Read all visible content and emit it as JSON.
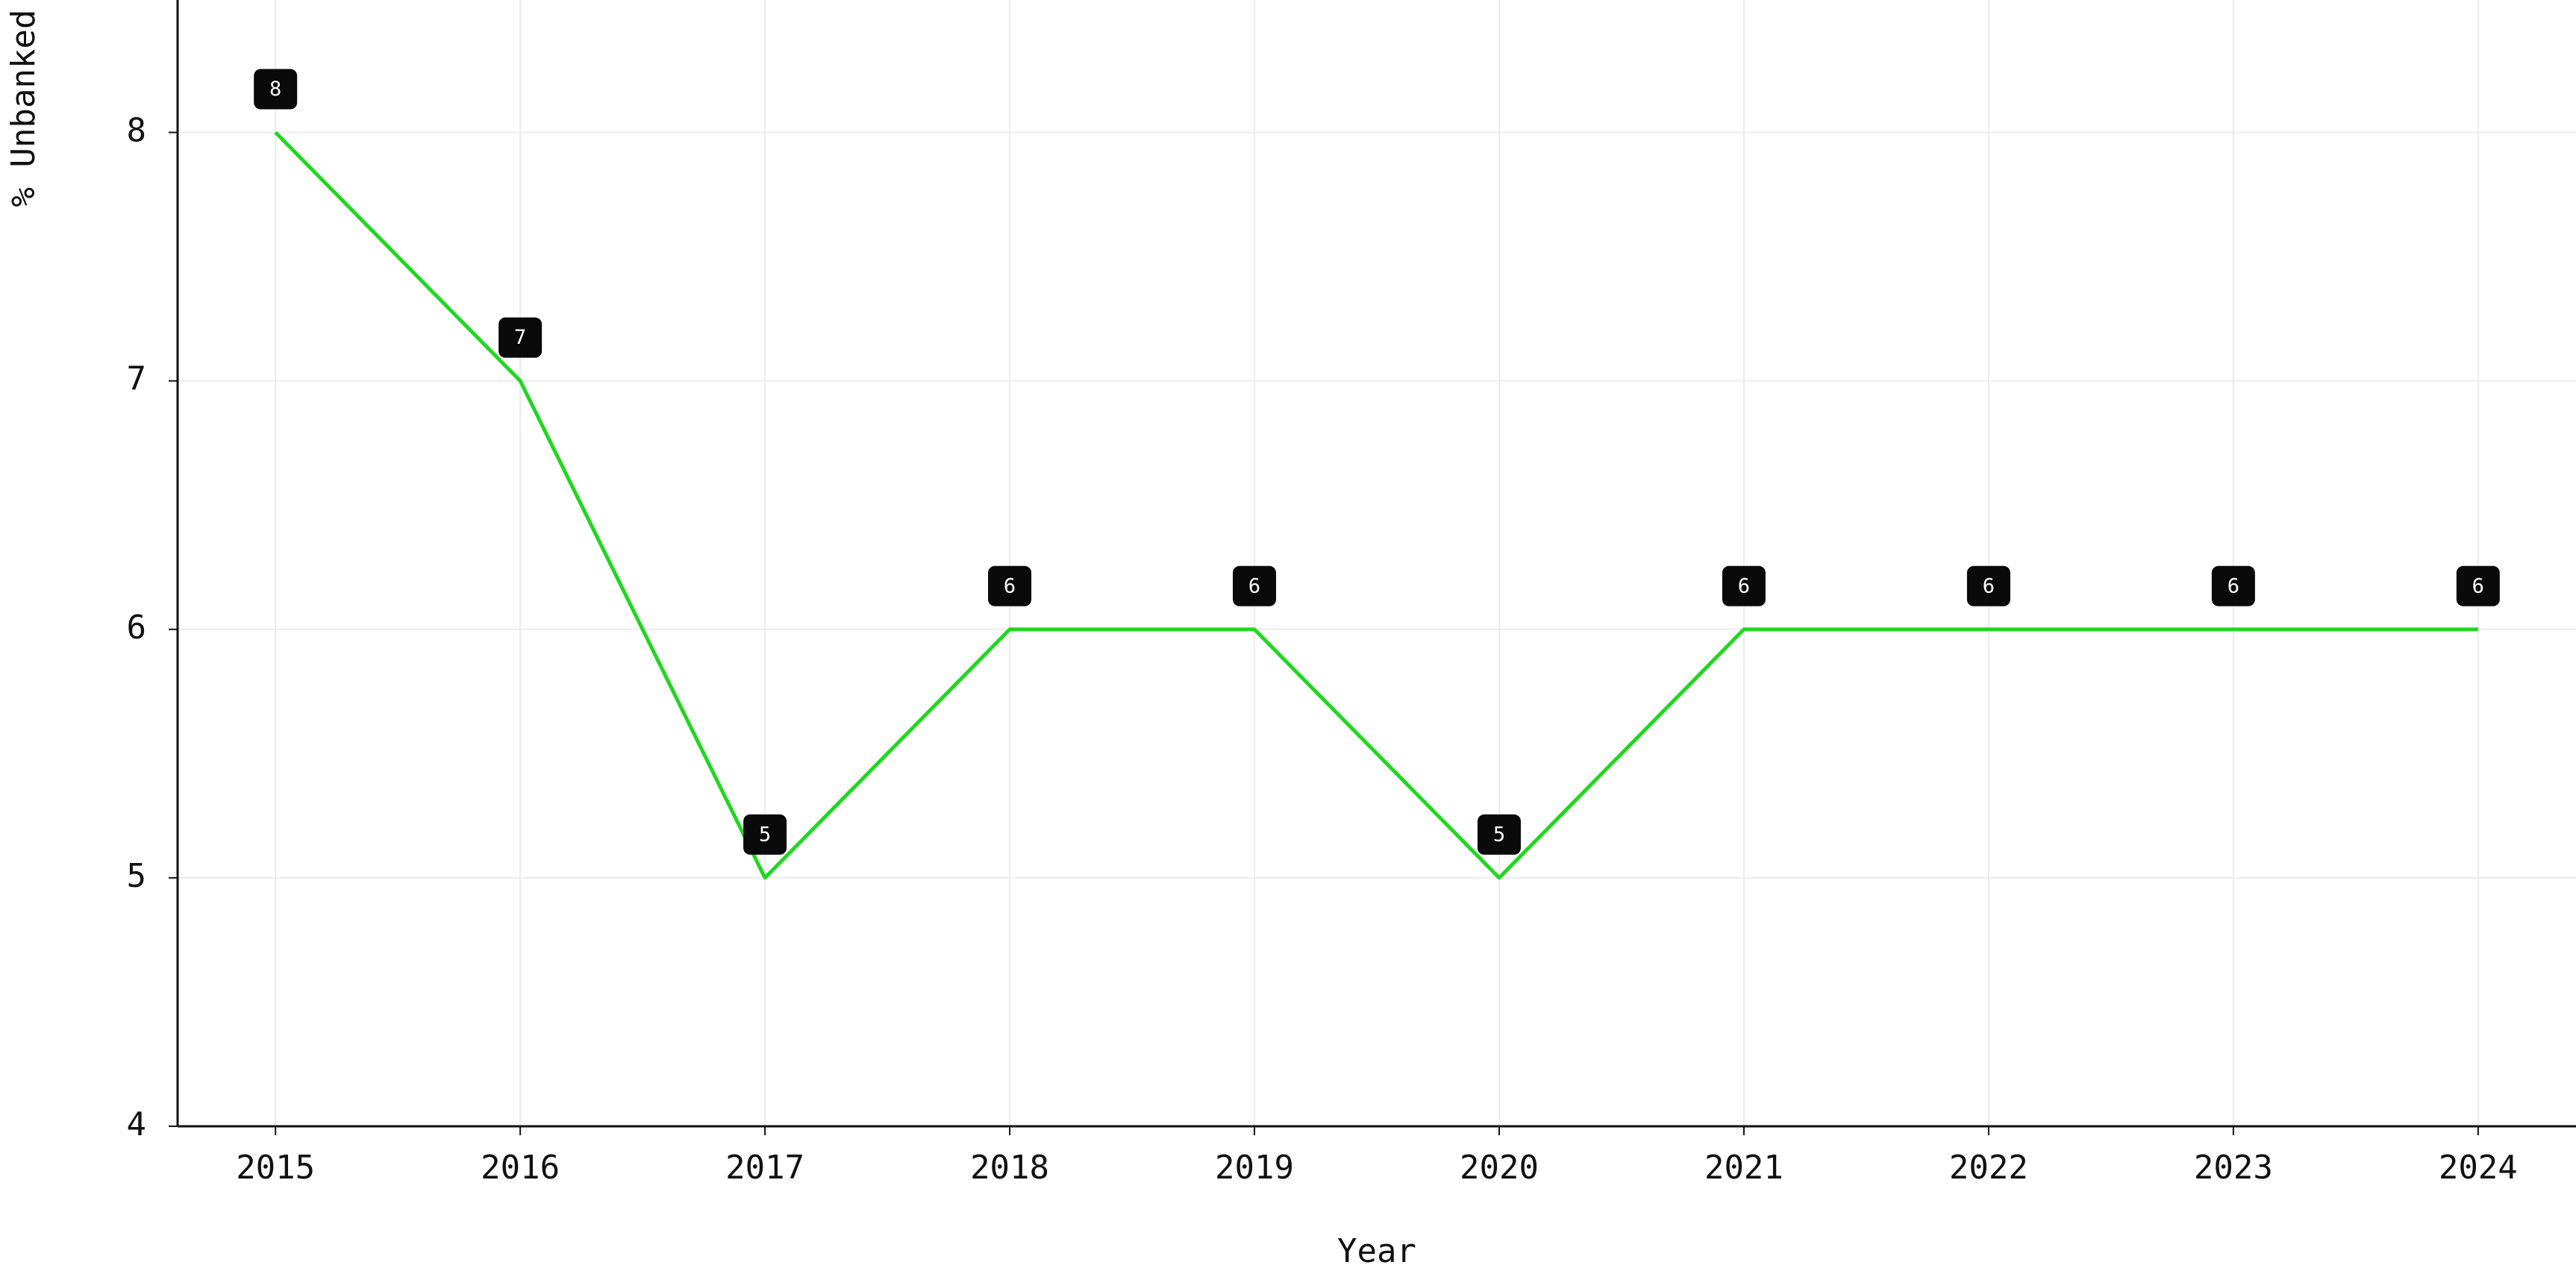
{
  "chart_data": {
    "type": "line",
    "x_label": "Year",
    "y_label": "% Unbanked",
    "x": [
      2015,
      2016,
      2017,
      2018,
      2019,
      2020,
      2021,
      2022,
      2023,
      2024
    ],
    "series": [
      {
        "name": "% Unbanked",
        "color": "#1fd81f",
        "values": [
          8,
          7,
          5,
          6,
          6,
          5,
          6,
          6,
          6,
          6
        ]
      }
    ],
    "xlim": [
      2014.6,
      2024.4
    ],
    "xticks": [
      2015,
      2016,
      2017,
      2018,
      2019,
      2020,
      2021,
      2022,
      2023,
      2024
    ],
    "ylim": [
      4,
      8.5
    ],
    "yticks": [
      4,
      5,
      6,
      7,
      8
    ],
    "grid": true
  }
}
